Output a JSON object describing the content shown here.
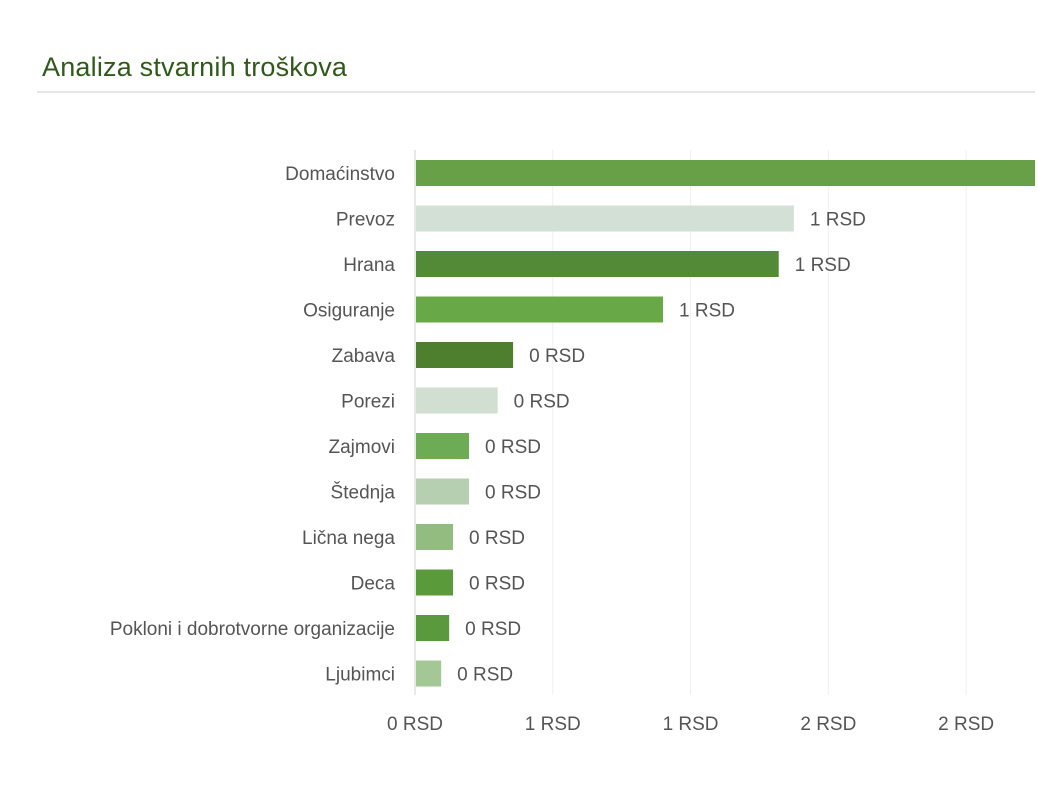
{
  "header": {
    "title": "Analiza stvarnih troškova"
  },
  "chart_data": {
    "type": "bar",
    "orientation": "horizontal",
    "title": "",
    "xlabel": "",
    "ylabel": "",
    "xlim": [
      0,
      2.25
    ],
    "grid": true,
    "categories": [
      "Domaćinstvo",
      "Prevoz",
      "Hrana",
      "Osiguranje",
      "Zabava",
      "Porezi",
      "Zajmovi",
      "Štednja",
      "Lična nega",
      "Deca",
      "Pokloni i dobrotvorne organizacije",
      "Ljubimci"
    ],
    "values": [
      2.3,
      1.375,
      1.32,
      0.9,
      0.356,
      0.3,
      0.196,
      0.196,
      0.138,
      0.138,
      0.124,
      0.095
    ],
    "data_labels": [
      "",
      "1 RSD",
      "1 RSD",
      "1 RSD",
      "0 RSD",
      "0 RSD",
      "0 RSD",
      "0 RSD",
      "0 RSD",
      "0 RSD",
      "0 RSD",
      "0 RSD"
    ],
    "colors": [
      "#68a047",
      "#d3e0d6",
      "#528a38",
      "#68a847",
      "#4d7f2f",
      "#d0dfd2",
      "#6dac55",
      "#b5cfb0",
      "#93bd80",
      "#5a9a3b",
      "#5b9a3c",
      "#a3c896"
    ],
    "x_ticks": [
      0,
      0.5,
      1,
      1.5,
      2
    ],
    "x_tick_labels": [
      "0 RSD",
      "1 RSD",
      "1 RSD",
      "2 RSD",
      "2 RSD"
    ]
  }
}
